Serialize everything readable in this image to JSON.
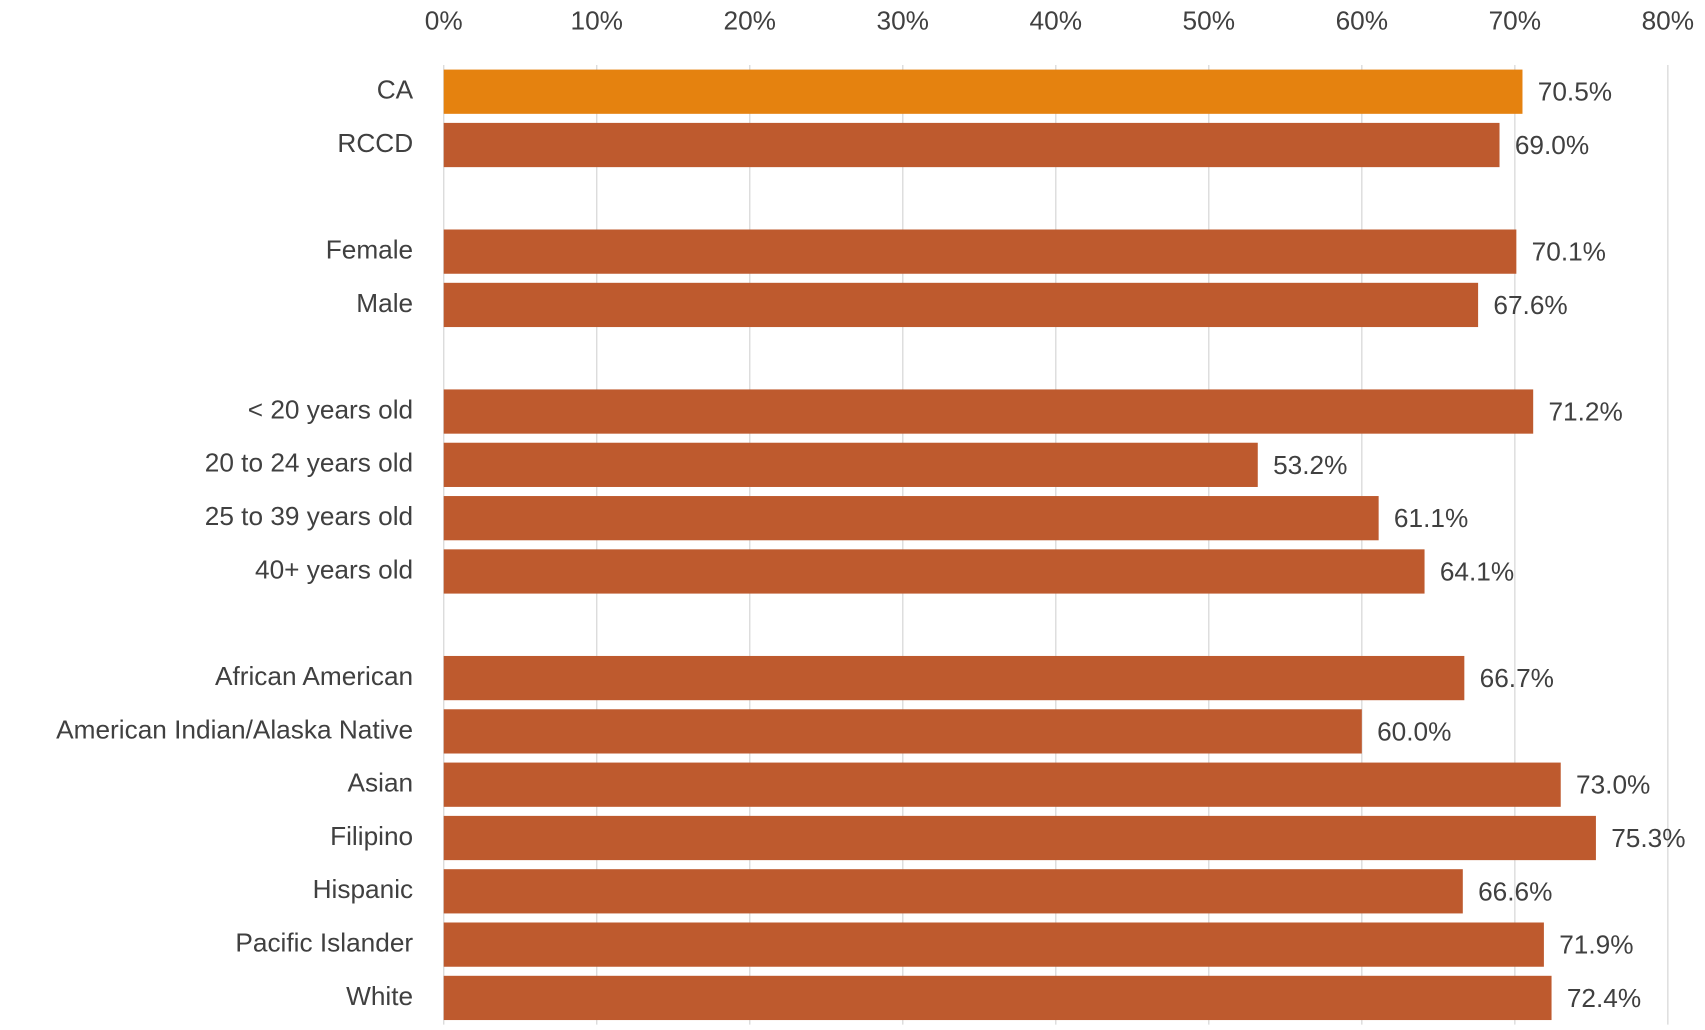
{
  "chart_data": {
    "type": "bar",
    "orientation": "horizontal",
    "categories": [
      "CA",
      "RCCD",
      null,
      "Female",
      "Male",
      null,
      "< 20 years old",
      "20 to 24 years old",
      "25 to 39 years old",
      "40+ years old",
      null,
      "African American",
      "American Indian/Alaska Native",
      "Asian",
      "Filipino",
      "Hispanic",
      "Pacific Islander",
      "White"
    ],
    "values": [
      70.5,
      69.0,
      null,
      70.1,
      67.6,
      null,
      71.2,
      53.2,
      61.1,
      64.1,
      null,
      66.7,
      60.0,
      73.0,
      75.3,
      66.6,
      71.9,
      72.4
    ],
    "value_labels": [
      "70.5%",
      "69.0%",
      null,
      "70.1%",
      "67.6%",
      null,
      "71.2%",
      "53.2%",
      "61.1%",
      "64.1%",
      null,
      "66.7%",
      "60.0%",
      "73.0%",
      "75.3%",
      "66.6%",
      "71.9%",
      "72.4%"
    ],
    "colors": [
      "#e5820f",
      "#be5a2e",
      null,
      "#be5a2e",
      "#be5a2e",
      null,
      "#be5a2e",
      "#be5a2e",
      "#be5a2e",
      "#be5a2e",
      null,
      "#be5a2e",
      "#be5a2e",
      "#be5a2e",
      "#be5a2e",
      "#be5a2e",
      "#be5a2e",
      "#be5a2e"
    ],
    "xlim": [
      0,
      80
    ],
    "xticks": [
      {
        "value": 0,
        "label": "0%"
      },
      {
        "value": 10,
        "label": "10%"
      },
      {
        "value": 20,
        "label": "20%"
      },
      {
        "value": 30,
        "label": "30%"
      },
      {
        "value": 40,
        "label": "40%"
      },
      {
        "value": 50,
        "label": "50%"
      },
      {
        "value": 60,
        "label": "60%"
      },
      {
        "value": 70,
        "label": "70%"
      },
      {
        "value": 80,
        "label": "80%"
      }
    ],
    "xaxis_position": "top",
    "grid": true
  }
}
